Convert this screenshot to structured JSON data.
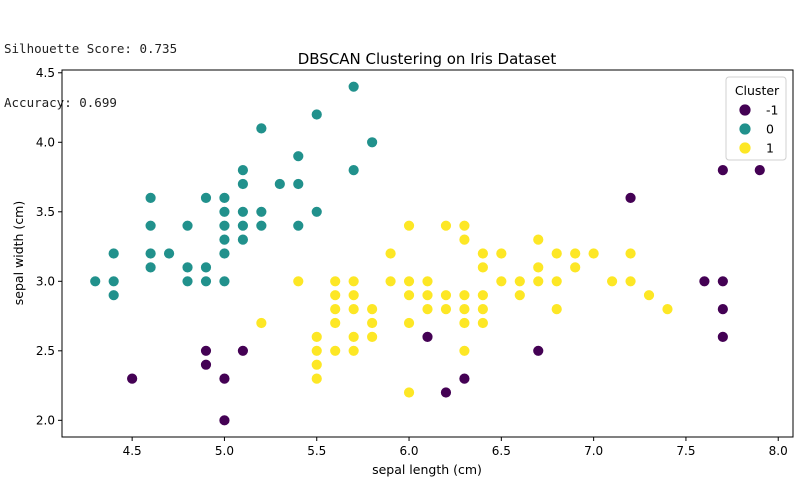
{
  "output": {
    "silhouette_line": "Silhouette Score: 0.735",
    "accuracy_line": "Accuracy: 0.699"
  },
  "colors": {
    "cluster_-1": "#440154",
    "cluster_0": "#21918c",
    "cluster_1": "#fde725"
  },
  "chart_data": {
    "type": "scatter",
    "title": "DBSCAN Clustering on Iris Dataset",
    "xlabel": "sepal length (cm)",
    "ylabel": "sepal width (cm)",
    "xlim": [
      4.12,
      8.08
    ],
    "ylim": [
      1.88,
      4.52
    ],
    "xticks": [
      "4.5",
      "5.0",
      "5.5",
      "6.0",
      "6.5",
      "7.0",
      "7.5",
      "8.0"
    ],
    "yticks": [
      "2.0",
      "2.5",
      "3.0",
      "3.5",
      "4.0",
      "4.5"
    ],
    "legend": {
      "title": "Cluster",
      "position": "top-right",
      "entries": [
        "-1",
        "0",
        "1"
      ]
    },
    "series": [
      {
        "name": "-1",
        "points": [
          [
            4.5,
            2.3
          ],
          [
            4.9,
            2.5
          ],
          [
            4.9,
            2.4
          ],
          [
            5.0,
            2.3
          ],
          [
            5.0,
            2.0
          ],
          [
            5.1,
            2.5
          ],
          [
            6.1,
            2.6
          ],
          [
            6.2,
            2.2
          ],
          [
            6.3,
            2.3
          ],
          [
            6.7,
            2.5
          ],
          [
            7.2,
            3.6
          ],
          [
            7.6,
            3.0
          ],
          [
            7.7,
            3.8
          ],
          [
            7.7,
            3.0
          ],
          [
            7.7,
            2.8
          ],
          [
            7.7,
            2.6
          ],
          [
            7.9,
            3.8
          ]
        ]
      },
      {
        "name": "0",
        "points": [
          [
            4.3,
            3.0
          ],
          [
            4.4,
            3.2
          ],
          [
            4.4,
            3.0
          ],
          [
            4.4,
            2.9
          ],
          [
            4.6,
            3.6
          ],
          [
            4.6,
            3.4
          ],
          [
            4.6,
            3.2
          ],
          [
            4.6,
            3.1
          ],
          [
            4.7,
            3.2
          ],
          [
            4.8,
            3.4
          ],
          [
            4.8,
            3.1
          ],
          [
            4.8,
            3.0
          ],
          [
            4.9,
            3.6
          ],
          [
            4.9,
            3.1
          ],
          [
            4.9,
            3.0
          ],
          [
            5.0,
            3.6
          ],
          [
            5.0,
            3.5
          ],
          [
            5.0,
            3.4
          ],
          [
            5.0,
            3.3
          ],
          [
            5.0,
            3.2
          ],
          [
            5.0,
            3.0
          ],
          [
            5.1,
            3.8
          ],
          [
            5.1,
            3.7
          ],
          [
            5.1,
            3.5
          ],
          [
            5.1,
            3.4
          ],
          [
            5.1,
            3.3
          ],
          [
            5.2,
            4.1
          ],
          [
            5.2,
            3.5
          ],
          [
            5.2,
            3.4
          ],
          [
            5.3,
            3.7
          ],
          [
            5.4,
            3.9
          ],
          [
            5.4,
            3.7
          ],
          [
            5.4,
            3.4
          ],
          [
            5.5,
            4.2
          ],
          [
            5.5,
            3.5
          ],
          [
            5.7,
            4.4
          ],
          [
            5.7,
            3.8
          ],
          [
            5.8,
            4.0
          ]
        ]
      },
      {
        "name": "1",
        "points": [
          [
            5.2,
            2.7
          ],
          [
            5.4,
            3.0
          ],
          [
            5.5,
            2.6
          ],
          [
            5.5,
            2.5
          ],
          [
            5.5,
            2.4
          ],
          [
            5.5,
            2.3
          ],
          [
            5.6,
            3.0
          ],
          [
            5.6,
            2.9
          ],
          [
            5.6,
            2.8
          ],
          [
            5.6,
            2.7
          ],
          [
            5.6,
            2.5
          ],
          [
            5.7,
            3.0
          ],
          [
            5.7,
            2.9
          ],
          [
            5.7,
            2.8
          ],
          [
            5.7,
            2.6
          ],
          [
            5.7,
            2.5
          ],
          [
            5.8,
            2.8
          ],
          [
            5.8,
            2.7
          ],
          [
            5.8,
            2.6
          ],
          [
            5.9,
            3.2
          ],
          [
            5.9,
            3.0
          ],
          [
            6.0,
            3.4
          ],
          [
            6.0,
            3.0
          ],
          [
            6.0,
            2.9
          ],
          [
            6.0,
            2.7
          ],
          [
            6.0,
            2.2
          ],
          [
            6.1,
            3.0
          ],
          [
            6.1,
            2.9
          ],
          [
            6.1,
            2.8
          ],
          [
            6.2,
            3.4
          ],
          [
            6.2,
            2.9
          ],
          [
            6.2,
            2.8
          ],
          [
            6.3,
            3.4
          ],
          [
            6.3,
            3.3
          ],
          [
            6.3,
            2.9
          ],
          [
            6.3,
            2.8
          ],
          [
            6.3,
            2.7
          ],
          [
            6.3,
            2.5
          ],
          [
            6.4,
            3.2
          ],
          [
            6.4,
            3.1
          ],
          [
            6.4,
            2.9
          ],
          [
            6.4,
            2.8
          ],
          [
            6.4,
            2.7
          ],
          [
            6.5,
            3.2
          ],
          [
            6.5,
            3.0
          ],
          [
            6.6,
            3.0
          ],
          [
            6.6,
            2.9
          ],
          [
            6.7,
            3.3
          ],
          [
            6.7,
            3.1
          ],
          [
            6.7,
            3.0
          ],
          [
            6.8,
            3.2
          ],
          [
            6.8,
            3.0
          ],
          [
            6.8,
            2.8
          ],
          [
            6.9,
            3.2
          ],
          [
            6.9,
            3.1
          ],
          [
            7.0,
            3.2
          ],
          [
            7.1,
            3.0
          ],
          [
            7.2,
            3.2
          ],
          [
            7.2,
            3.0
          ],
          [
            7.3,
            2.9
          ],
          [
            7.4,
            2.8
          ]
        ]
      }
    ]
  }
}
